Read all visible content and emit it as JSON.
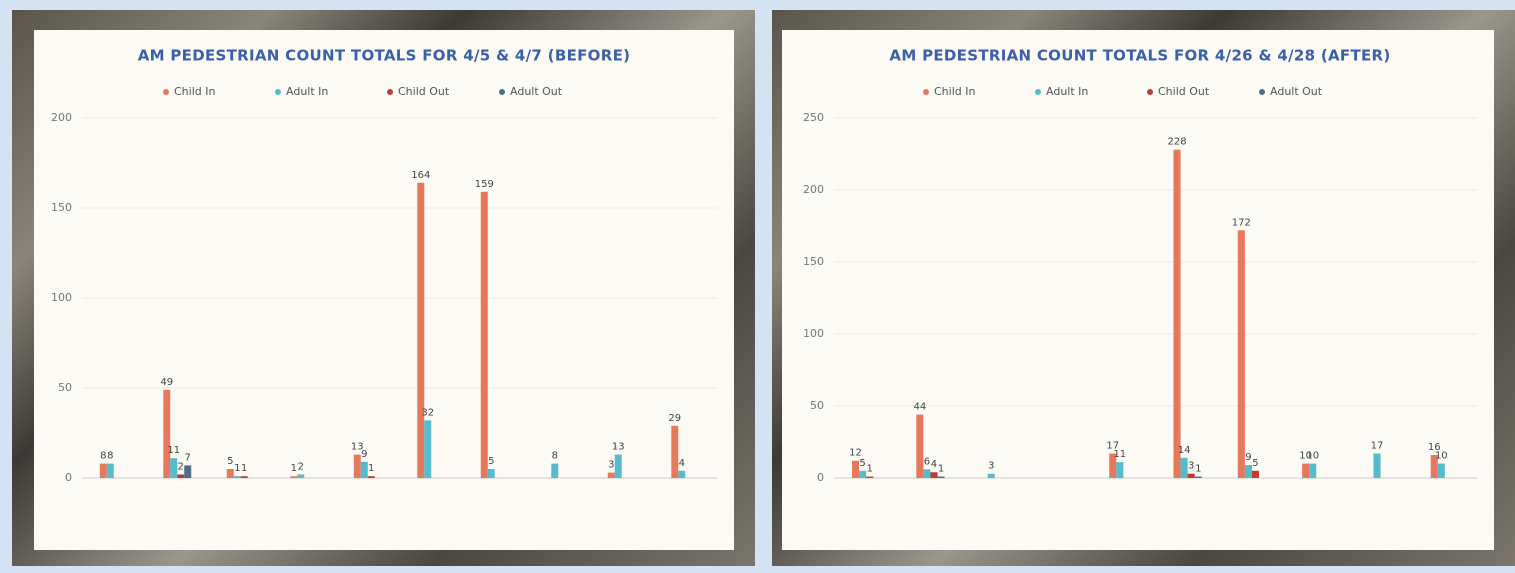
{
  "chart_data": [
    {
      "type": "bar",
      "title": "AM PEDESTRIAN COUNT TOTALS FOR 4/5 & 4/7 (BEFORE)",
      "categories": [
        null,
        null,
        null,
        null,
        null,
        null,
        null,
        null,
        null,
        null
      ],
      "series": [
        {
          "name": "Child In",
          "color": "#e8785c",
          "values": [
            8,
            49,
            5,
            1,
            13,
            164,
            159,
            0,
            3,
            29
          ]
        },
        {
          "name": "Adult In",
          "color": "#56bccc",
          "values": [
            8,
            11,
            1,
            2,
            9,
            32,
            5,
            8,
            13,
            4
          ]
        },
        {
          "name": "Child Out",
          "color": "#c23b2c",
          "values": [
            0,
            2,
            1,
            0,
            1,
            0,
            0,
            0,
            0,
            0
          ]
        },
        {
          "name": "Adult Out",
          "color": "#4f6f8c",
          "values": [
            0,
            7,
            0,
            0,
            0,
            0,
            0,
            0,
            0,
            0
          ]
        }
      ],
      "ylim": [
        0,
        200
      ],
      "yticks": [
        0,
        50,
        100,
        150,
        200
      ],
      "grid": true
    },
    {
      "type": "bar",
      "title": "AM PEDESTRIAN COUNT TOTALS FOR 4/26 & 4/28 (AFTER)",
      "categories": [
        null,
        null,
        null,
        null,
        null,
        null,
        null,
        null,
        null,
        null
      ],
      "series": [
        {
          "name": "Child In",
          "color": "#e8785c",
          "values": [
            12,
            44,
            0,
            0,
            17,
            228,
            172,
            10,
            0,
            16
          ]
        },
        {
          "name": "Adult In",
          "color": "#56bccc",
          "values": [
            5,
            6,
            3,
            0,
            11,
            14,
            9,
            10,
            17,
            10
          ]
        },
        {
          "name": "Child Out",
          "color": "#c23b2c",
          "values": [
            1,
            4,
            0,
            0,
            0,
            3,
            5,
            0,
            0,
            0
          ]
        },
        {
          "name": "Adult Out",
          "color": "#4f6f8c",
          "values": [
            0,
            1,
            0,
            0,
            0,
            1,
            0,
            0,
            0,
            0
          ]
        }
      ],
      "ylim": [
        0,
        250
      ],
      "yticks": [
        0,
        50,
        100,
        150,
        200,
        250
      ],
      "grid": true
    }
  ]
}
